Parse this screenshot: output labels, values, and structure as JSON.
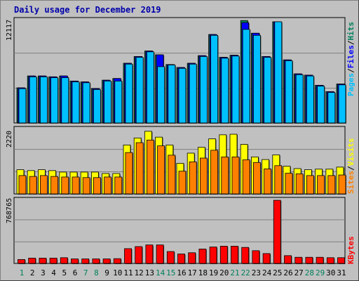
{
  "title": "Daily usage for December 2019",
  "colors": {
    "hits": "#00805c",
    "files": "#0000ff",
    "pages": "#00c0ff",
    "visits": "#ffff00",
    "sites": "#ff8000",
    "kbytes": "#ff0000",
    "weekday_label": "#000000",
    "weekend_label": "#00805c"
  },
  "chart_data": [
    {
      "type": "bar",
      "title": "",
      "ymax_label": "12117",
      "legend": [
        "Pages",
        "Files",
        "Hits"
      ],
      "categories": [
        "1",
        "2",
        "3",
        "4",
        "5",
        "6",
        "7",
        "8",
        "9",
        "10",
        "11",
        "12",
        "13",
        "14",
        "15",
        "16",
        "17",
        "18",
        "19",
        "20",
        "21",
        "22",
        "23",
        "24",
        "25",
        "26",
        "27",
        "28",
        "29",
        "30",
        "31"
      ],
      "weekend_days": [
        "1",
        "7",
        "8",
        "14",
        "15",
        "21",
        "22",
        "28",
        "29"
      ],
      "ylim": [
        0,
        12117
      ],
      "series": [
        {
          "name": "Hits",
          "values": [
            4150,
            5550,
            5550,
            5450,
            5550,
            4950,
            4850,
            4050,
            5050,
            5250,
            7050,
            7850,
            8500,
            8050,
            6900,
            6550,
            7050,
            7950,
            10450,
            7750,
            8000,
            12100,
            10600,
            7850,
            11950,
            7450,
            5800,
            5650,
            4450,
            3700,
            4600
          ]
        },
        {
          "name": "Files",
          "values": [
            4150,
            5550,
            5550,
            5450,
            5550,
            4950,
            4850,
            4050,
            5050,
            5250,
            7050,
            7850,
            8500,
            8050,
            6900,
            6550,
            7050,
            7950,
            10450,
            7750,
            8000,
            11850,
            10600,
            7850,
            11950,
            7450,
            5800,
            5650,
            4450,
            3700,
            4600
          ]
        },
        {
          "name": "Pages",
          "values": [
            4050,
            5450,
            5450,
            5350,
            5350,
            4850,
            4750,
            3950,
            4950,
            4950,
            6950,
            7750,
            8400,
            6650,
            6850,
            6450,
            6950,
            7850,
            10350,
            7650,
            7900,
            11050,
            10350,
            7750,
            11950,
            7350,
            5700,
            5550,
            4350,
            3600,
            4500
          ]
        }
      ]
    },
    {
      "type": "bar",
      "title": "",
      "ymax_label": "2220",
      "legend": [
        "Sites",
        "Visits"
      ],
      "categories": [
        "1",
        "2",
        "3",
        "4",
        "5",
        "6",
        "7",
        "8",
        "9",
        "10",
        "11",
        "12",
        "13",
        "14",
        "15",
        "16",
        "17",
        "18",
        "19",
        "20",
        "21",
        "22",
        "23",
        "24",
        "25",
        "26",
        "27",
        "28",
        "29",
        "30",
        "31"
      ],
      "ylim": [
        0,
        2220
      ],
      "series": [
        {
          "name": "Visits",
          "values": [
            830,
            800,
            830,
            800,
            750,
            750,
            750,
            750,
            700,
            700,
            1680,
            1920,
            2150,
            1950,
            1680,
            1050,
            1400,
            1600,
            1890,
            2030,
            2050,
            1700,
            1270,
            1180,
            1340,
            950,
            870,
            830,
            850,
            850,
            920
          ]
        },
        {
          "name": "Sites",
          "values": [
            630,
            600,
            630,
            600,
            580,
            580,
            560,
            560,
            580,
            580,
            1420,
            1760,
            1850,
            1650,
            1330,
            780,
            1100,
            1230,
            1500,
            1270,
            1270,
            1170,
            1080,
            860,
            970,
            710,
            690,
            630,
            630,
            630,
            650
          ]
        }
      ]
    },
    {
      "type": "bar",
      "title": "",
      "ymax_label": "768765",
      "legend": [
        "KBytes"
      ],
      "categories": [
        "1",
        "2",
        "3",
        "4",
        "5",
        "6",
        "7",
        "8",
        "9",
        "10",
        "11",
        "12",
        "13",
        "14",
        "15",
        "16",
        "17",
        "18",
        "19",
        "20",
        "21",
        "22",
        "23",
        "24",
        "25",
        "26",
        "27",
        "28",
        "29",
        "30",
        "31"
      ],
      "ylim": [
        0,
        768765
      ],
      "series": [
        {
          "name": "KBytes",
          "values": [
            48000,
            65000,
            65000,
            65000,
            70000,
            55000,
            55000,
            55000,
            55000,
            58000,
            180000,
            205000,
            225000,
            225000,
            145000,
            115000,
            130000,
            175000,
            200000,
            210000,
            210000,
            195000,
            155000,
            120000,
            768000,
            95000,
            75000,
            75000,
            75000,
            70000,
            70000
          ]
        }
      ]
    }
  ]
}
